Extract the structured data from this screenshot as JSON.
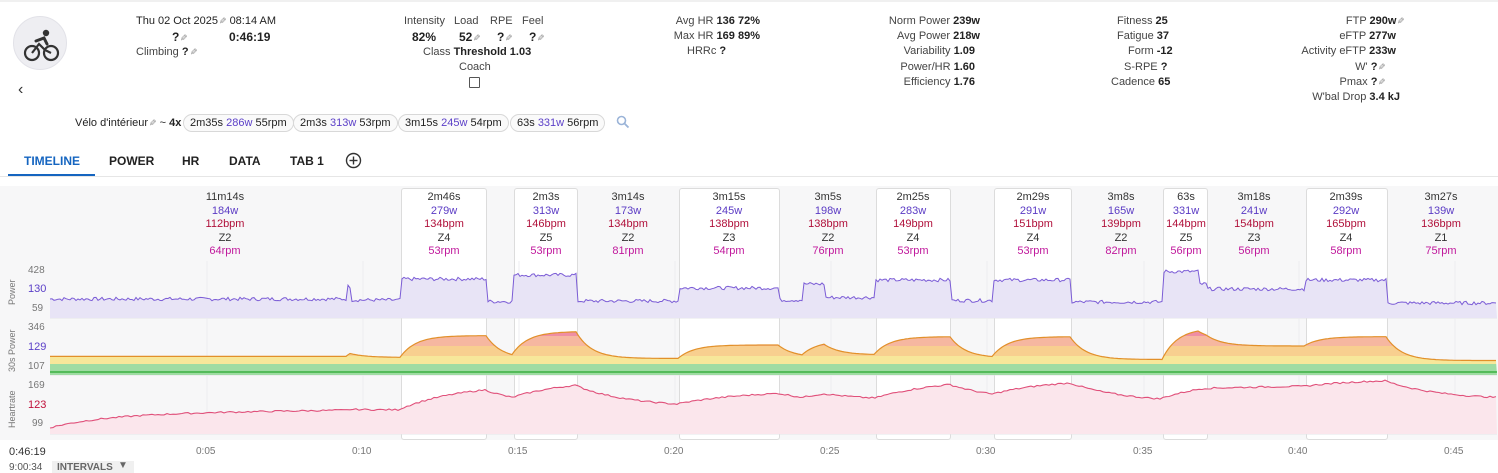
{
  "header": {
    "date": "Thu 02 Oct 2025",
    "time": "08:14 AM",
    "name_value": "?",
    "duration": "0:46:19",
    "climbing_label": "Climbing",
    "climbing_value": "?"
  },
  "load": {
    "intensity_label": "Intensity",
    "intensity_value": "82%",
    "load_label": "Load",
    "load_value": "52",
    "rpe_label": "RPE",
    "rpe_value": "?",
    "feel_label": "Feel",
    "feel_value": "?",
    "class_label": "Class",
    "class_value": "Threshold 1.03",
    "coach_label": "Coach"
  },
  "hr": {
    "avg_label": "Avg HR",
    "avg_value": "136",
    "avg_pct": "72%",
    "max_label": "Max HR",
    "max_value": "169",
    "max_pct": "89%",
    "hrrc_label": "HRRc",
    "hrrc_value": "?"
  },
  "power": {
    "norm_label": "Norm Power",
    "norm_value": "239w",
    "avg_label": "Avg Power",
    "avg_value": "218w",
    "var_label": "Variability",
    "var_value": "1.09",
    "phr_label": "Power/HR",
    "phr_value": "1.60",
    "eff_label": "Efficiency",
    "eff_value": "1.76"
  },
  "fitness": {
    "fitness_label": "Fitness",
    "fitness_value": "25",
    "fatigue_label": "Fatigue",
    "fatigue_value": "37",
    "form_label": "Form",
    "form_value": "-12",
    "srpe_label": "S-RPE",
    "srpe_value": "?",
    "cadence_label": "Cadence",
    "cadence_value": "65"
  },
  "ftp": {
    "ftp_label": "FTP",
    "ftp_value": "290w",
    "eftp_label": "eFTP",
    "eftp_value": "277w",
    "aeftp_label": "Activity eFTP",
    "aeftp_value": "233w",
    "wprime_label": "W'",
    "wprime_value": "?",
    "pmax_label": "Pmax",
    "pmax_value": "?",
    "wbal_label": "W'bal Drop",
    "wbal_value": "3.4 kJ"
  },
  "intervals_summary": {
    "type_label": "Vélo d'intérieur",
    "repeat_prefix": "~",
    "repeat_count": "4x",
    "chips": [
      {
        "dur": "2m35s",
        "watts": "286w",
        "rpm": "55rpm"
      },
      {
        "dur": "2m3s",
        "watts": "313w",
        "rpm": "53rpm"
      },
      {
        "dur": "3m15s",
        "watts": "245w",
        "rpm": "54rpm"
      },
      {
        "dur": "63s",
        "watts": "331w",
        "rpm": "56rpm"
      }
    ]
  },
  "tabs": [
    "TIMELINE",
    "POWER",
    "HR",
    "DATA",
    "TAB 1"
  ],
  "icons": {
    "avatar": "cyclist-icon",
    "back": "chevron-left-icon",
    "search": "search-icon",
    "add_tab": "plus-circle-icon",
    "edit": "pencil-icon",
    "dropdown": "caret-down-icon"
  },
  "intervals": [
    {
      "dur": "11m14s",
      "w": "184w",
      "bpm": "112bpm",
      "zone": "Z2",
      "rpm": "64rpm",
      "boxed": false
    },
    {
      "dur": "2m46s",
      "w": "279w",
      "bpm": "134bpm",
      "zone": "Z4",
      "rpm": "53rpm",
      "boxed": true
    },
    {
      "dur": "2m3s",
      "w": "313w",
      "bpm": "146bpm",
      "zone": "Z5",
      "rpm": "53rpm",
      "boxed": true
    },
    {
      "dur": "3m14s",
      "w": "173w",
      "bpm": "134bpm",
      "zone": "Z2",
      "rpm": "81rpm",
      "boxed": false
    },
    {
      "dur": "3m15s",
      "w": "245w",
      "bpm": "138bpm",
      "zone": "Z3",
      "rpm": "54rpm",
      "boxed": true
    },
    {
      "dur": "3m5s",
      "w": "198w",
      "bpm": "138bpm",
      "zone": "Z2",
      "rpm": "76rpm",
      "boxed": false
    },
    {
      "dur": "2m25s",
      "w": "283w",
      "bpm": "149bpm",
      "zone": "Z4",
      "rpm": "53rpm",
      "boxed": true
    },
    {
      "dur": "2m29s",
      "w": "291w",
      "bpm": "151bpm",
      "zone": "Z4",
      "rpm": "53rpm",
      "boxed": true
    },
    {
      "dur": "3m8s",
      "w": "165w",
      "bpm": "139bpm",
      "zone": "Z2",
      "rpm": "82rpm",
      "boxed": false
    },
    {
      "dur": "63s",
      "w": "331w",
      "bpm": "144bpm",
      "zone": "Z5",
      "rpm": "56rpm",
      "boxed": true
    },
    {
      "dur": "3m18s",
      "w": "241w",
      "bpm": "154bpm",
      "zone": "Z3",
      "rpm": "56rpm",
      "boxed": false
    },
    {
      "dur": "2m39s",
      "w": "292w",
      "bpm": "165bpm",
      "zone": "Z4",
      "rpm": "58rpm",
      "boxed": true
    },
    {
      "dur": "3m27s",
      "w": "139w",
      "bpm": "136bpm",
      "zone": "Z1",
      "rpm": "75rpm",
      "boxed": false
    }
  ],
  "charts": {
    "power_label": "Power",
    "power_ticks": [
      "428",
      "130",
      "59"
    ],
    "power30_label": "30s Power",
    "power30_ticks": [
      "346",
      "129",
      "107"
    ],
    "hr_label": "Heartrate",
    "hr_ticks": [
      "169",
      "123",
      "99"
    ],
    "time_ticks": [
      "0:05",
      "0:10",
      "0:15",
      "0:20",
      "0:25",
      "0:30",
      "0:35",
      "0:40",
      "0:45"
    ]
  },
  "footer": {
    "cursor_time": "0:46:19",
    "clock_time": "9:00:34",
    "intervals_label": "INTERVALS"
  },
  "colors": {
    "accent": "#1565c0",
    "power_line": "#7b5cd6",
    "hr_line": "#e0507a",
    "zone_green": "#3cb043",
    "zone_yellow": "#f2c230",
    "zone_orange": "#f08a24",
    "zone_red": "#e03050"
  }
}
